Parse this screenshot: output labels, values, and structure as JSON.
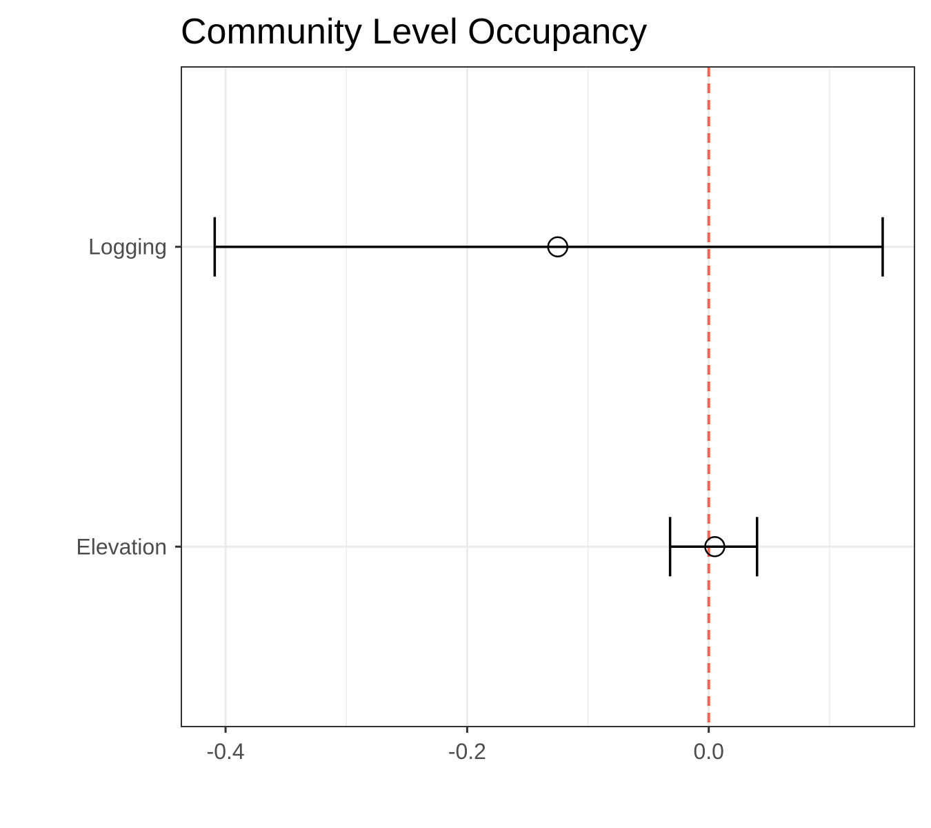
{
  "chart_data": {
    "type": "forest",
    "title": "Community Level Occupancy",
    "xlabel": "",
    "ylabel": "",
    "xlim": [
      -0.4366,
      0.1703
    ],
    "x_ticks": [
      -0.4,
      -0.2,
      0.0
    ],
    "x_tick_labels": [
      "-0.4",
      "-0.2",
      "0.0"
    ],
    "categories": [
      "Logging",
      "Elevation"
    ],
    "estimates": [
      {
        "name": "Logging",
        "estimate": -0.125,
        "lower": -0.409,
        "upper": 0.144
      },
      {
        "name": "Elevation",
        "estimate": 0.005,
        "lower": -0.032,
        "upper": 0.04
      }
    ],
    "reference_line": {
      "x": 0.0,
      "style": "dashed",
      "color": "#ff6347"
    },
    "grid": true,
    "colors": {
      "grid": "#ebebeb",
      "marks": "#000000",
      "panel_border": "#333333",
      "tick_text": "#4d4d4d"
    }
  }
}
